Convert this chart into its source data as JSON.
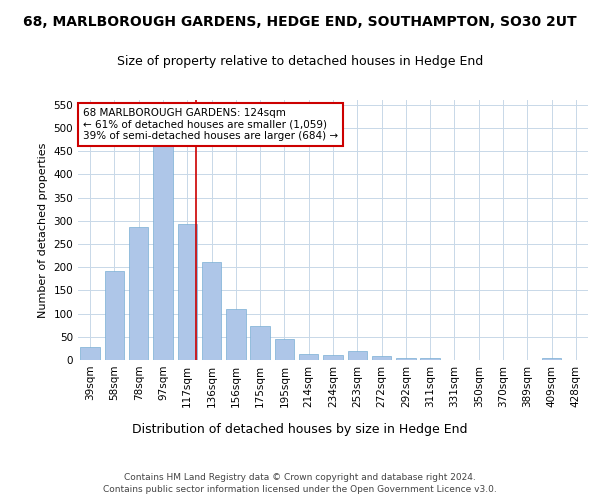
{
  "title1": "68, MARLBOROUGH GARDENS, HEDGE END, SOUTHAMPTON, SO30 2UT",
  "title2": "Size of property relative to detached houses in Hedge End",
  "xlabel": "Distribution of detached houses by size in Hedge End",
  "ylabel": "Number of detached properties",
  "categories": [
    "39sqm",
    "58sqm",
    "78sqm",
    "97sqm",
    "117sqm",
    "136sqm",
    "156sqm",
    "175sqm",
    "195sqm",
    "214sqm",
    "234sqm",
    "253sqm",
    "272sqm",
    "292sqm",
    "311sqm",
    "331sqm",
    "350sqm",
    "370sqm",
    "389sqm",
    "409sqm",
    "428sqm"
  ],
  "values": [
    28,
    192,
    287,
    460,
    293,
    212,
    109,
    73,
    46,
    12,
    10,
    20,
    8,
    5,
    5,
    0,
    0,
    0,
    0,
    5,
    0
  ],
  "bar_color": "#aec6e8",
  "bar_edge_color": "#7aafd4",
  "vline_color": "#cc0000",
  "vline_sqm": 124,
  "annotation_line1": "68 MARLBOROUGH GARDENS: 124sqm",
  "annotation_line2": "← 61% of detached houses are smaller (1,059)",
  "annotation_line3": "39% of semi-detached houses are larger (684) →",
  "annotation_box_color": "#ffffff",
  "annotation_box_edge": "#cc0000",
  "ylim": [
    0,
    560
  ],
  "yticks": [
    0,
    50,
    100,
    150,
    200,
    250,
    300,
    350,
    400,
    450,
    500,
    550
  ],
  "footer1": "Contains HM Land Registry data © Crown copyright and database right 2024.",
  "footer2": "Contains public sector information licensed under the Open Government Licence v3.0.",
  "bg_color": "#ffffff",
  "grid_color": "#c8d8e8",
  "title1_fontsize": 10,
  "title2_fontsize": 9,
  "xlabel_fontsize": 9,
  "ylabel_fontsize": 8,
  "tick_fontsize": 7.5,
  "annotation_fontsize": 7.5,
  "footer_fontsize": 6.5
}
